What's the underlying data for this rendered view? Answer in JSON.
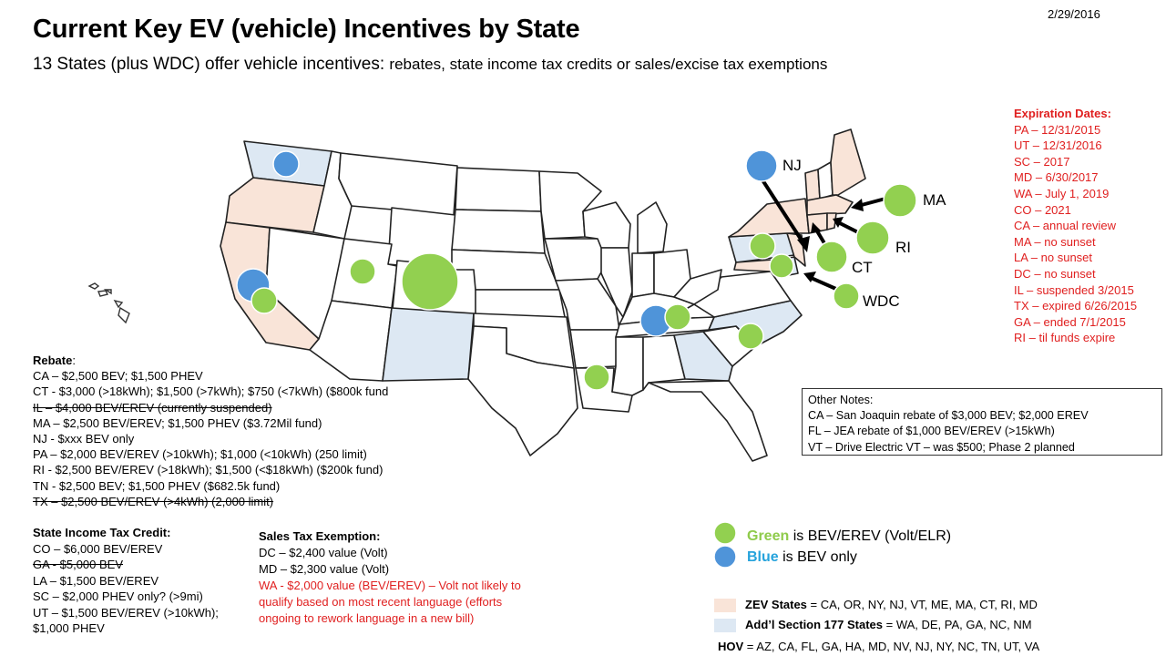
{
  "date": "2/29/2016",
  "title": "Current Key EV (vehicle) Incentives by State",
  "subtitle_main": "13 States (plus WDC) offer vehicle incentives: ",
  "subtitle_rest": "rebates, state income tax credits or sales/excise tax exemptions",
  "callouts": {
    "nj": "NJ",
    "ma": "MA",
    "ri": "RI",
    "ct": "CT",
    "wdc": "WDC"
  },
  "rebate": {
    "heading": "Rebate",
    "heading_suffix": ":",
    "lines": [
      {
        "text": "CA – $2,500 BEV; $1,500 PHEV",
        "strike": false
      },
      {
        "text": "CT - $3,000 (>18kWh); $1,500 (>7kWh); $750 (<7kWh) ($800k fund",
        "strike": false
      },
      {
        "text": "IL – $4,000 BEV/EREV (currently suspended)",
        "strike": true
      },
      {
        "text": "MA – $2,500 BEV/EREV; $1,500 PHEV ($3.72Mil fund)",
        "strike": false
      },
      {
        "text": "NJ - $xxx BEV only",
        "strike": false
      },
      {
        "text": "PA – $2,000 BEV/EREV (>10kWh); $1,000 (<10kWh) (250 limit)",
        "strike": false
      },
      {
        "text": "RI - $2,500 BEV/EREV (>18kWh); $1,500 (<$18kWh) ($200k fund)",
        "strike": false
      },
      {
        "text": "TN - $2,500 BEV; $1,500 PHEV ($682.5k fund)",
        "strike": false
      },
      {
        "text": "TX – $2,500 BEV/EREV (>4kWh) (2,000 limit)",
        "strike": true
      }
    ]
  },
  "income_tax": {
    "heading": "State Income Tax Credit:",
    "lines": [
      {
        "text": "CO – $6,000 BEV/EREV",
        "strike": false
      },
      {
        "text": "GA - $5,000 BEV",
        "strike": true
      },
      {
        "text": "LA – $1,500 BEV/EREV",
        "strike": false
      },
      {
        "text": "SC – $2,000 PHEV only? (>9mi)",
        "strike": false
      },
      {
        "text": "UT – $1,500 BEV/EREV (>10kWh);",
        "strike": false
      },
      {
        "text": "$1,000 PHEV",
        "strike": false
      }
    ]
  },
  "sales_tax": {
    "heading": "Sales Tax Exemption:",
    "lines": [
      {
        "text": "DC – $2,400 value (Volt)",
        "red": false
      },
      {
        "text": "MD – $2,300 value (Volt)",
        "red": false
      },
      {
        "text": "WA - $2,000 value (BEV/EREV) – Volt not likely to",
        "red": true
      },
      {
        "text": "qualify based on most recent language (efforts",
        "red": true
      },
      {
        "text": "ongoing to rework language in a new bill)",
        "red": true
      }
    ]
  },
  "expiration": {
    "heading": "Expiration Dates:",
    "lines": [
      "PA – 12/31/2015",
      "UT – 12/31/2016",
      "SC – 2017",
      "MD – 6/30/2017",
      "WA – July 1, 2019",
      "CO – 2021",
      "CA – annual review",
      "MA – no sunset",
      "LA – no sunset",
      "DC – no sunset",
      "IL – suspended 3/2015",
      "TX – expired 6/26/2015",
      "GA – ended 7/1/2015",
      "RI – til funds expire"
    ]
  },
  "other_notes": {
    "heading": "Other Notes:",
    "lines": [
      "CA – San Joaquin rebate of $3,000 BEV; $2,000 EREV",
      "FL – JEA rebate of $1,000 BEV/EREV (>15kWh)",
      "VT – Drive Electric VT – was $500; Phase 2 planned"
    ]
  },
  "legend": {
    "green_word": "Green",
    "green_rest": " is BEV/EREV (Volt/ELR)",
    "blue_word": "Blue",
    "blue_rest": " is BEV only",
    "zev_label": "ZEV States",
    "zev_value": " = CA, OR, NY, NJ, VT, ME, MA, CT, RI, MD",
    "sec177_label": "Add’l Section 177 States",
    "sec177_value": " = WA, DE, PA, GA, NC, NM",
    "hov_label": "HOV",
    "hov_value": " = AZ, CA, FL, GA, HA, MD, NV, NJ, NY, NC, TN, UT, VA"
  },
  "colors": {
    "green": "#92d050",
    "blue": "#4f94d9",
    "zev_fill": "#f9e4d8",
    "sec177_fill": "#dde8f3",
    "state_line": "#222222",
    "expiry_red": "#e02020"
  }
}
